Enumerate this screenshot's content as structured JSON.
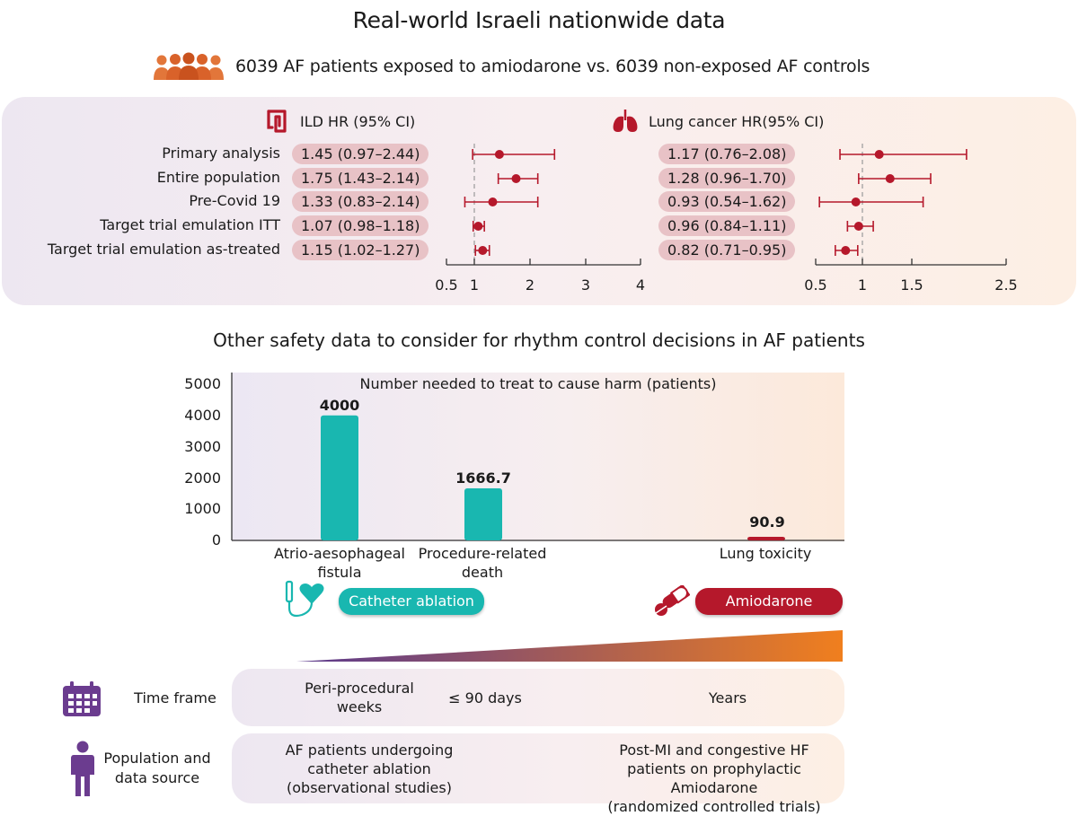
{
  "title": "Real-world Israeli nationwide data",
  "subtitle": "6039 AF patients exposed to amiodarone vs. 6039 non-exposed AF controls",
  "colors": {
    "hr_red": "#b5182b",
    "pill": "#e8c2c6",
    "teal": "#19b7b0",
    "amio_red": "#b5182b",
    "calendar_purple": "#6b3c8f",
    "gradient_start": "#5b3a8e",
    "gradient_end": "#f07f1e"
  },
  "icons": {
    "people": "people-group-icon",
    "intestine": "intestine-icon",
    "lungs": "lungs-icon",
    "catheter_heart": "catheter-heart-icon",
    "pills": "pills-icon",
    "calendar": "calendar-icon",
    "person": "person-icon"
  },
  "forest": {
    "ild_header": "ILD HR (95% CI)",
    "lung_header": "Lung cancer HR(95% CI)",
    "rows": [
      {
        "label": "Primary analysis",
        "ild_text": "1.45 (0.97–2.44)",
        "lung_text": "1.17 (0.76–2.08)"
      },
      {
        "label": "Entire population",
        "ild_text": "1.75 (1.43–2.14)",
        "lung_text": "1.28 (0.96–1.70)"
      },
      {
        "label": "Pre-Covid 19",
        "ild_text": "1.33 (0.83–2.14)",
        "lung_text": "0.93 (0.54–1.62)"
      },
      {
        "label": "Target trial emulation ITT",
        "ild_text": "1.07 (0.98–1.18)",
        "lung_text": "0.96 (0.84–1.11)"
      },
      {
        "label": "Target trial emulation as-treated",
        "ild_text": "1.15 (1.02–1.27)",
        "lung_text": "0.82 (0.71–0.95)"
      }
    ]
  },
  "chart_data": [
    {
      "type": "forest",
      "title": "ILD HR (95% CI)",
      "categories": [
        "Primary analysis",
        "Entire population",
        "Pre-Covid 19",
        "Target trial emulation ITT",
        "Target trial emulation as-treated"
      ],
      "estimates": [
        1.45,
        1.75,
        1.33,
        1.07,
        1.15
      ],
      "lower": [
        0.97,
        1.43,
        0.83,
        0.98,
        1.02
      ],
      "upper": [
        2.44,
        2.14,
        2.14,
        1.18,
        1.27
      ],
      "x_ticks": [
        0.5,
        1,
        2,
        3,
        4
      ],
      "x_tick_labels": [
        "0.5",
        "1",
        "2",
        "3",
        "4"
      ],
      "xlim": [
        0.5,
        4
      ],
      "reference_line": 1
    },
    {
      "type": "forest",
      "title": "Lung cancer HR(95% CI)",
      "categories": [
        "Primary analysis",
        "Entire population",
        "Pre-Covid 19",
        "Target trial emulation ITT",
        "Target trial emulation as-treated"
      ],
      "estimates": [
        1.17,
        1.28,
        0.93,
        0.96,
        0.82
      ],
      "lower": [
        0.76,
        0.96,
        0.54,
        0.84,
        0.71
      ],
      "upper": [
        2.08,
        1.7,
        1.62,
        1.11,
        0.95
      ],
      "x_ticks": [
        0.5,
        1,
        1.5,
        2.5
      ],
      "x_tick_labels": [
        "0.5",
        "1",
        "1.5",
        "2.5"
      ],
      "xlim": [
        0.5,
        2.5
      ],
      "reference_line": 1
    },
    {
      "type": "bar",
      "title": "Number needed to treat to cause harm (patients)",
      "categories": [
        "Atrio-aesophageal fistula",
        "Procedure-related death",
        "Lung toxicity"
      ],
      "values": [
        4000,
        1666.7,
        90.9
      ],
      "value_labels": [
        "4000",
        "1666.7",
        "90.9"
      ],
      "y_ticks": [
        "5000",
        "4000",
        "3000",
        "2000",
        "1000",
        "0"
      ],
      "ylim": [
        0,
        5000
      ],
      "bar_colors": [
        "#19b7b0",
        "#19b7b0",
        "#b5182b"
      ]
    }
  ],
  "section2_title": "Other safety data to consider for rhythm control decisions in AF patients",
  "bar": {
    "cat1_line1": "Atrio-aesophageal",
    "cat1_line2": "fistula",
    "cat2_line1": "Procedure-related",
    "cat2_line2": "death",
    "cat3": "Lung toxicity"
  },
  "tags": {
    "ablation": "Catheter ablation",
    "amiodarone": "Amiodarone"
  },
  "table": {
    "time_frame_label": "Time frame",
    "population_label_1": "Population and",
    "population_label_2": "data source",
    "time_col1_line1": "Peri-procedural",
    "time_col1_line2": "weeks",
    "time_col2": "≤ 90 days",
    "time_col3": "Years",
    "pop_col1_line1": "AF patients undergoing",
    "pop_col1_line2": "catheter ablation",
    "pop_col1_line3": "(observational studies)",
    "pop_col2_line1": "Post-MI and congestive HF",
    "pop_col2_line2": "patients on prophylactic Amiodarone",
    "pop_col2_line3": "(randomized controlled trials)"
  }
}
